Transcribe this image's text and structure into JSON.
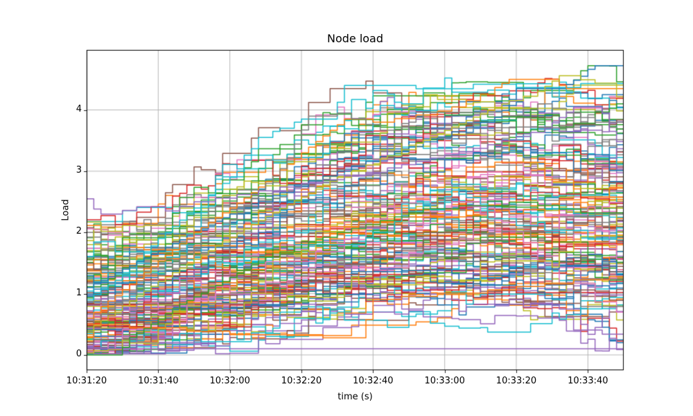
{
  "chart_data": {
    "type": "line",
    "title": "Node load",
    "xlabel": "time (s)",
    "ylabel": "Load",
    "legend": "none",
    "grid": true,
    "grid_color": "#b0b0b0",
    "spine_color": "#000000",
    "background_color": "#ffffff",
    "line_style": "steps-post",
    "line_width": 1.5,
    "x_tick_labels": [
      "10:31:20",
      "10:31:40",
      "10:32:00",
      "10:32:20",
      "10:32:40",
      "10:33:00",
      "10:33:20",
      "10:33:40"
    ],
    "x_tick_seconds": [
      0,
      20,
      40,
      60,
      80,
      100,
      120,
      140
    ],
    "x_axis_span_seconds": 150,
    "y_tick_labels": [
      "0",
      "1",
      "2",
      "3",
      "4"
    ],
    "y_tick_values": [
      0,
      1,
      2,
      3,
      4
    ],
    "ylim": [
      -0.25,
      4.98
    ],
    "data_max_observed": 4.75,
    "palette": [
      "#1f77b4",
      "#ff7f0e",
      "#2ca02c",
      "#d62728",
      "#9467bd",
      "#8c564b",
      "#e377c2",
      "#7f7f7f",
      "#bcbd22",
      "#17becf"
    ],
    "series_count": 150,
    "sample_step_seconds": 2,
    "generator": {
      "seed": 7,
      "start_max": 2.2,
      "peak_max": 4.35,
      "hold_probability": 0.55,
      "noise": 0.22,
      "pull": 0.35,
      "rise_fraction_range": [
        0.35,
        0.8
      ],
      "end_drop_max": 1.1,
      "big_drop_probability": 0.15,
      "value_clamp": [
        0.02,
        4.8
      ]
    },
    "highlight_series": [
      {
        "name": "bottom-flat-purple",
        "color": "#9467bd",
        "t": [
          0,
          20,
          50,
          78,
          80,
          120,
          150
        ],
        "v": [
          0.1,
          0.12,
          0.09,
          0.09,
          0.15,
          0.12,
          0.1
        ]
      },
      {
        "name": "early-high-cyan",
        "color": "#17becf",
        "t": [
          0,
          10,
          20,
          30,
          42,
          48,
          60,
          68,
          72,
          85,
          95,
          100,
          110,
          122,
          130,
          140,
          150
        ],
        "v": [
          0.9,
          1.3,
          1.9,
          2.4,
          3.0,
          3.55,
          3.85,
          3.85,
          4.4,
          4.45,
          4.3,
          4.3,
          4.45,
          4.35,
          4.35,
          4.45,
          4.4
        ]
      },
      {
        "name": "late-peak-blue",
        "color": "#1f77b4",
        "t": [
          0,
          20,
          40,
          60,
          80,
          95,
          105,
          115,
          120,
          132,
          138,
          141,
          150
        ],
        "v": [
          1.1,
          1.7,
          2.3,
          2.8,
          3.2,
          3.5,
          3.7,
          3.9,
          4.35,
          4.35,
          4.55,
          4.72,
          4.75
        ]
      },
      {
        "name": "high-orange",
        "color": "#ff7f0e",
        "t": [
          0,
          15,
          30,
          45,
          60,
          72,
          80,
          90,
          100,
          112,
          118,
          128,
          136,
          144,
          150
        ],
        "v": [
          0.6,
          1.3,
          2.0,
          2.6,
          3.3,
          3.85,
          3.8,
          3.9,
          4.0,
          4.3,
          4.5,
          4.5,
          4.3,
          4.3,
          4.35
        ]
      },
      {
        "name": "high-gray",
        "color": "#7f7f7f",
        "t": [
          0,
          20,
          40,
          55,
          62,
          70,
          85,
          95,
          105,
          118,
          126,
          134,
          142,
          150
        ],
        "v": [
          0.5,
          1.3,
          2.2,
          3.1,
          3.9,
          3.95,
          3.6,
          4.0,
          3.95,
          3.9,
          4.1,
          3.95,
          3.8,
          3.75
        ]
      },
      {
        "name": "high-olive",
        "color": "#bcbd22",
        "t": [
          0,
          20,
          45,
          70,
          90,
          105,
          118,
          126,
          133,
          140,
          147,
          150
        ],
        "v": [
          0.4,
          1.2,
          2.1,
          2.9,
          3.4,
          3.8,
          4.15,
          4.3,
          4.6,
          4.45,
          4.4,
          3.85
        ]
      },
      {
        "name": "orange-dip-jump",
        "color": "#ff7f0e",
        "t": [
          0,
          10,
          25,
          40,
          55,
          70,
          77,
          79,
          95,
          110,
          125,
          140,
          150
        ],
        "v": [
          0.5,
          0.45,
          0.4,
          0.33,
          0.3,
          0.27,
          0.25,
          0.9,
          1.0,
          1.05,
          1.15,
          1.25,
          1.3
        ]
      },
      {
        "name": "zero-start-green",
        "color": "#2ca02c",
        "t": [
          0,
          9,
          11,
          18,
          25,
          35,
          50,
          70,
          95,
          120,
          140,
          150
        ],
        "v": [
          0.0,
          0.0,
          0.25,
          0.5,
          0.8,
          1.1,
          1.6,
          2.0,
          2.4,
          2.5,
          2.3,
          2.3
        ]
      },
      {
        "name": "purple-start-high",
        "color": "#9467bd",
        "t": [
          0,
          3,
          6,
          16,
          22,
          30,
          50,
          80,
          110,
          128,
          136,
          143,
          147,
          150
        ],
        "v": [
          2.55,
          2.3,
          2.3,
          2.45,
          2.35,
          2.5,
          2.7,
          3.0,
          3.4,
          3.7,
          4.05,
          4.1,
          3.5,
          3.45
        ]
      }
    ]
  }
}
